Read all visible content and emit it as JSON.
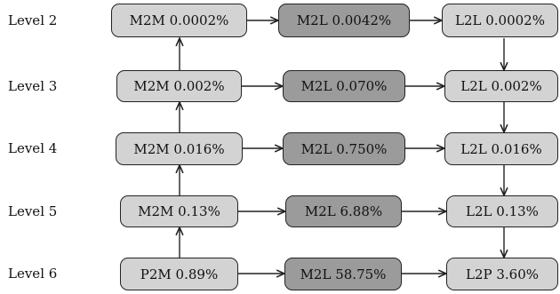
{
  "levels": [
    {
      "label": "Level 2",
      "nodes": [
        "M2M 0.0002%",
        "M2L 0.0042%",
        "L2L 0.0002%"
      ]
    },
    {
      "label": "Level 3",
      "nodes": [
        "M2M 0.002%",
        "M2L 0.070%",
        "L2L 0.002%"
      ]
    },
    {
      "label": "Level 4",
      "nodes": [
        "M2M 0.016%",
        "M2L 0.750%",
        "L2L 0.016%"
      ]
    },
    {
      "label": "Level 5",
      "nodes": [
        "M2M 0.13%",
        "M2L 6.88%",
        "L2L 0.13%"
      ]
    },
    {
      "label": "Level 6",
      "nodes": [
        "P2M 0.89%",
        "M2L 58.75%",
        "L2P 3.60%"
      ]
    }
  ],
  "colors": {
    "light": "#d3d3d3",
    "dark": "#9b9b9b",
    "line": "#222222"
  }
}
